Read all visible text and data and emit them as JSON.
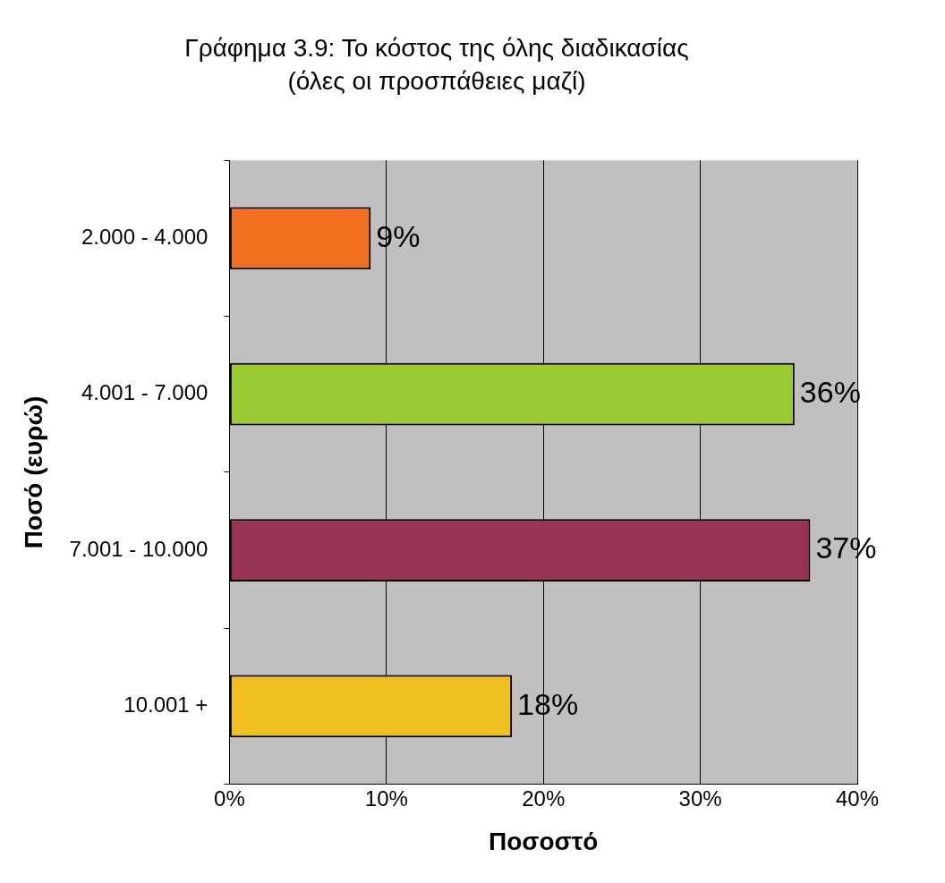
{
  "chart_data": {
    "type": "bar",
    "orientation": "horizontal",
    "title": "Γράφημα 3.9: Το κόστος της όλης διαδικασίας",
    "subtitle": "(όλες οι προσπάθειες μαζί)",
    "xlabel": "Ποσοστό",
    "ylabel": "Ποσό (ευρώ)",
    "categories": [
      "2.000 - 4.000",
      "4.001 - 7.000",
      "7.001 - 10.000",
      "10.001 +"
    ],
    "values": [
      9,
      36,
      37,
      18
    ],
    "colors": [
      "#f07020",
      "#99cc33",
      "#993355",
      "#f0c020"
    ],
    "value_labels": [
      "9%",
      "36%",
      "37%",
      "18%"
    ],
    "xlim": [
      0,
      40
    ],
    "xticks": [
      {
        "value": 0,
        "label": "0%"
      },
      {
        "value": 10,
        "label": "10%"
      },
      {
        "value": 20,
        "label": "20%"
      },
      {
        "value": 30,
        "label": "30%"
      },
      {
        "value": 40,
        "label": "40%"
      }
    ],
    "grid": "x",
    "legend": false
  }
}
